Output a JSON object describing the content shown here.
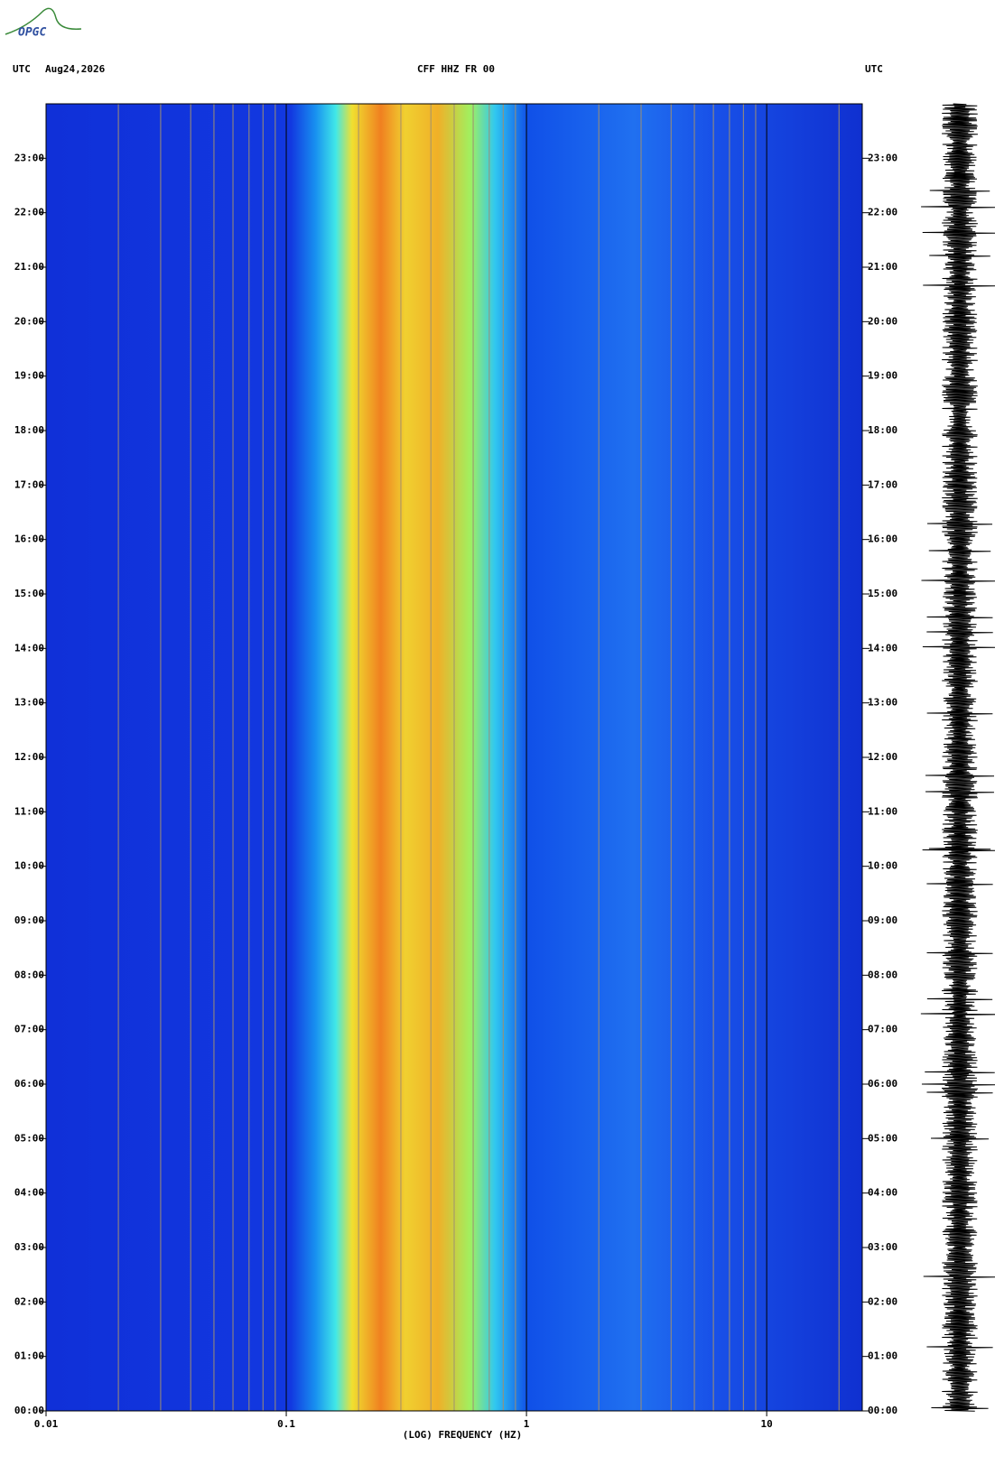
{
  "logo": "OPGC",
  "header": {
    "left_zone": "UTC",
    "date": "Aug24,2026",
    "station": "CFF HHZ FR 00",
    "right_zone": "UTC"
  },
  "chart_data": {
    "type": "spectrogram",
    "xlabel": "(LOG) FREQUENCY (HZ)",
    "xscale": "log",
    "xlim": [
      0.01,
      25
    ],
    "xticks": [
      0.01,
      0.1,
      1,
      10
    ],
    "xgrid": [
      0.02,
      0.03,
      0.04,
      0.05,
      0.06,
      0.07,
      0.08,
      0.09,
      0.2,
      0.3,
      0.4,
      0.5,
      0.6,
      0.7,
      0.8,
      0.9,
      2,
      3,
      4,
      5,
      6,
      7,
      8,
      9,
      20
    ],
    "ylim": [
      0,
      24
    ],
    "yticks": [
      {
        "value": 0,
        "label": "00:00"
      },
      {
        "value": 1,
        "label": "01:00"
      },
      {
        "value": 2,
        "label": "02:00"
      },
      {
        "value": 3,
        "label": "03:00"
      },
      {
        "value": 4,
        "label": "04:00"
      },
      {
        "value": 5,
        "label": "05:00"
      },
      {
        "value": 6,
        "label": "06:00"
      },
      {
        "value": 7,
        "label": "07:00"
      },
      {
        "value": 8,
        "label": "08:00"
      },
      {
        "value": 9,
        "label": "09:00"
      },
      {
        "value": 10,
        "label": "10:00"
      },
      {
        "value": 11,
        "label": "11:00"
      },
      {
        "value": 12,
        "label": "12:00"
      },
      {
        "value": 13,
        "label": "13:00"
      },
      {
        "value": 14,
        "label": "14:00"
      },
      {
        "value": 15,
        "label": "15:00"
      },
      {
        "value": 16,
        "label": "16:00"
      },
      {
        "value": 17,
        "label": "17:00"
      },
      {
        "value": 18,
        "label": "18:00"
      },
      {
        "value": 19,
        "label": "19:00"
      },
      {
        "value": 20,
        "label": "20:00"
      },
      {
        "value": 21,
        "label": "21:00"
      },
      {
        "value": 22,
        "label": "22:00"
      },
      {
        "value": 23,
        "label": "23:00"
      }
    ]
  }
}
